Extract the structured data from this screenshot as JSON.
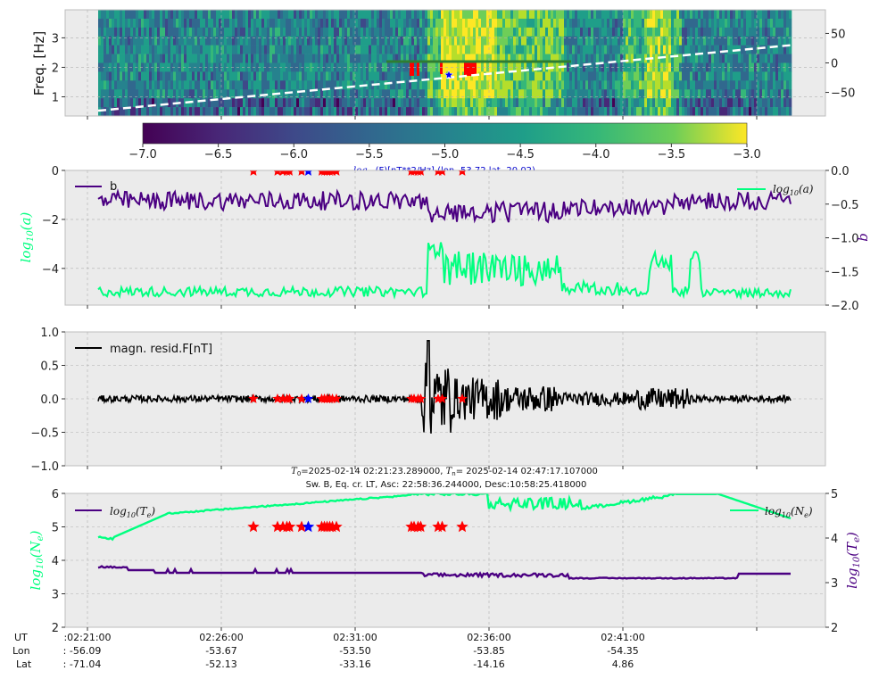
{
  "colors": {
    "panel_bg": "#ebebeb",
    "grid": "#b0b0b0",
    "green": "#00ff7f",
    "purple": "#4b0082",
    "black": "#000000",
    "red_marker": "#ff0000",
    "blue_marker": "#0000ff",
    "white_dashed": "#ffffff",
    "dark_green_line": "#2e7d32",
    "title_blue": "#0000cc"
  },
  "time_axis": {
    "ticks": [
      "02:21:00",
      "02:26:00",
      "02:31:00",
      "02:36:00",
      "02:41:00"
    ],
    "row_labels": [
      "UT",
      "Lon",
      "Lat"
    ],
    "lon": [
      "-56.09",
      "-53.67",
      "-53.50",
      "-53.85",
      "-54.35"
    ],
    "lat": [
      "-71.04",
      "-52.13",
      "-33.16",
      "-14.16",
      "4.86"
    ]
  },
  "colorbar": {
    "ticks": [
      "−7.0",
      "−6.5",
      "−6.0",
      "−5.5",
      "−5.0",
      "−4.5",
      "−4.0",
      "−3.5",
      "−3.0"
    ],
    "label_func": "log",
    "label_sub": "10",
    "label_rest": "(F)[nT**2/Hz] (lon -53.72 lat -20.02)"
  },
  "header": {
    "line1_t0": "T",
    "line1_t0_sub": "0",
    "line1_mid": "=2025-02-14 02:21:23.289000, ",
    "line1_tn": "T",
    "line1_tn_sub": "n",
    "line1_end": "= 2025-02-14 02:47:17.107000",
    "line2": "Sw. B, Eq. cr. LT, Asc: 22:58:36.244000, Desc:10:58:25.418000"
  },
  "chart_data": [
    {
      "type": "heatmap",
      "name": "spectrogram",
      "ylabel": "Freq. [Hz]",
      "y_ticks": [
        "1",
        "2",
        "3"
      ],
      "ylim": [
        0.35,
        3.95
      ],
      "right_ticks": [
        "50",
        "0",
        "−50"
      ],
      "right_ylim": [
        -90,
        90
      ],
      "colormap": "viridis",
      "crange": [
        -7.0,
        -3.0
      ],
      "dashed_line_deg": [
        -81,
        30
      ],
      "grid": true
    },
    {
      "type": "line",
      "name": "a_b_panel",
      "ylabel_left": "log10(a)",
      "ylabel_right": "b",
      "left_ticks": [
        "0",
        "−2",
        "−4"
      ],
      "left_ylim": [
        -5.5,
        0
      ],
      "right_ticks": [
        "0.0",
        "−0.5",
        "−1.0",
        "−1.5",
        "−2.0"
      ],
      "right_ylim": [
        -2,
        0
      ],
      "legend_left": "b",
      "legend_right_func": "log",
      "legend_right_sub": "10",
      "legend_right_var": "(a)",
      "grid": true
    },
    {
      "type": "line",
      "name": "magnetic_residual",
      "legend": "magn. resid.F[nT]",
      "y_ticks": [
        "1.0",
        "0.5",
        "0.0",
        "−0.5",
        "−1.0"
      ],
      "ylim": [
        -1,
        1
      ],
      "grid": true
    },
    {
      "type": "line",
      "name": "plasma",
      "ylabel_left": "log10(Ne)",
      "ylabel_right": "log10(Te)",
      "left_ticks": [
        "6",
        "5",
        "4",
        "3",
        "2"
      ],
      "left_ylim": [
        2,
        6
      ],
      "right_ticks": [
        "5",
        "4",
        "3",
        "2"
      ],
      "right_ylim": [
        2,
        5
      ],
      "legend_left_func": "log",
      "legend_left_sub": "10",
      "legend_left_var": "(T",
      "legend_left_var_sub": "e",
      "legend_right_func": "log",
      "legend_right_sub": "10",
      "legend_right_var": "(N",
      "legend_right_var_sub": "e",
      "grid": true
    }
  ],
  "markers": {
    "red_times_min": [
      6.2,
      7.1,
      7.3,
      7.45,
      7.55,
      8.0,
      8.75,
      8.85,
      8.95,
      9.05,
      9.15,
      9.3,
      12.1,
      12.2,
      12.35,
      12.45,
      13.1,
      13.25,
      14.0
    ],
    "blue_times_min": [
      8.25
    ]
  }
}
